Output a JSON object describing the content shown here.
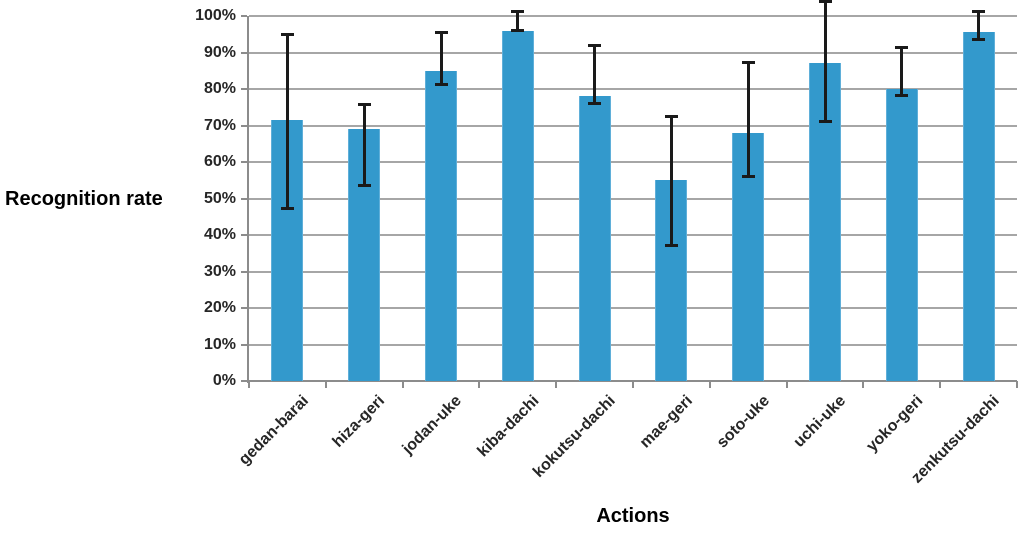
{
  "chart_data": {
    "type": "bar",
    "title": "",
    "xlabel": "Actions",
    "ylabel": "Recognition rate",
    "categories": [
      "gedan-barai",
      "hiza-geri",
      "jodan-uke",
      "kiba-dachi",
      "kokutsu-dachi",
      "mae-geri",
      "soto-uke",
      "uchi-uke",
      "yoko-geri",
      "zenkutsu-dachi"
    ],
    "series": [
      {
        "name": "Recognition rate",
        "values": [
          71.5,
          69,
          85,
          96,
          78,
          55,
          68,
          87,
          80,
          95.5
        ],
        "error_low": [
          47,
          53.5,
          81,
          96,
          76,
          37,
          56,
          71,
          78,
          93.5
        ],
        "error_high": [
          95,
          76,
          95.5,
          101.5,
          92,
          72.5,
          87.5,
          104,
          91.5,
          101.5
        ]
      }
    ],
    "ylim": [
      0,
      100
    ],
    "ytick_labels": [
      "0%",
      "10%",
      "20%",
      "30%",
      "40%",
      "50%",
      "60%",
      "70%",
      "80%",
      "90%",
      "100%"
    ],
    "grid": true,
    "legend": "none",
    "colors": {
      "bar": "#3399CC",
      "bar_edge": "#5FAFD9",
      "error": "#1A1A1A",
      "grid": "#A6A6A6",
      "axis": "#8C8C8C",
      "text": "#262626"
    }
  }
}
